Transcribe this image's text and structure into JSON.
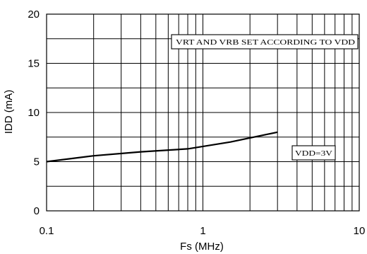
{
  "chart_data": {
    "type": "line",
    "xscale": "log",
    "xlim": [
      0.1,
      10
    ],
    "ylim": [
      0,
      20
    ],
    "xticks": [
      0.1,
      1,
      10
    ],
    "xtick_labels": [
      "0.1",
      "1",
      "10"
    ],
    "yticks": [
      0,
      5,
      10,
      15,
      20
    ],
    "ytick_labels": [
      "0",
      "5",
      "10",
      "15",
      "20"
    ],
    "y_minor_step": 2.5,
    "grid": true,
    "xlabel": "Fs (MHz)",
    "ylabel": "IDD (mA)",
    "series": [
      {
        "name": "VDD=3V",
        "x": [
          0.1,
          0.2,
          0.4,
          0.8,
          1.5,
          3.0
        ],
        "y": [
          5.0,
          5.6,
          6.0,
          6.3,
          7.0,
          8.0
        ]
      }
    ],
    "annotations": [
      {
        "text": "VRT AND VRB SET ACCORDING TO  VDD"
      },
      {
        "text": "VDD=3V"
      }
    ]
  },
  "colors": {
    "line": "#000000",
    "grid": "#000000",
    "background": "#ffffff"
  }
}
